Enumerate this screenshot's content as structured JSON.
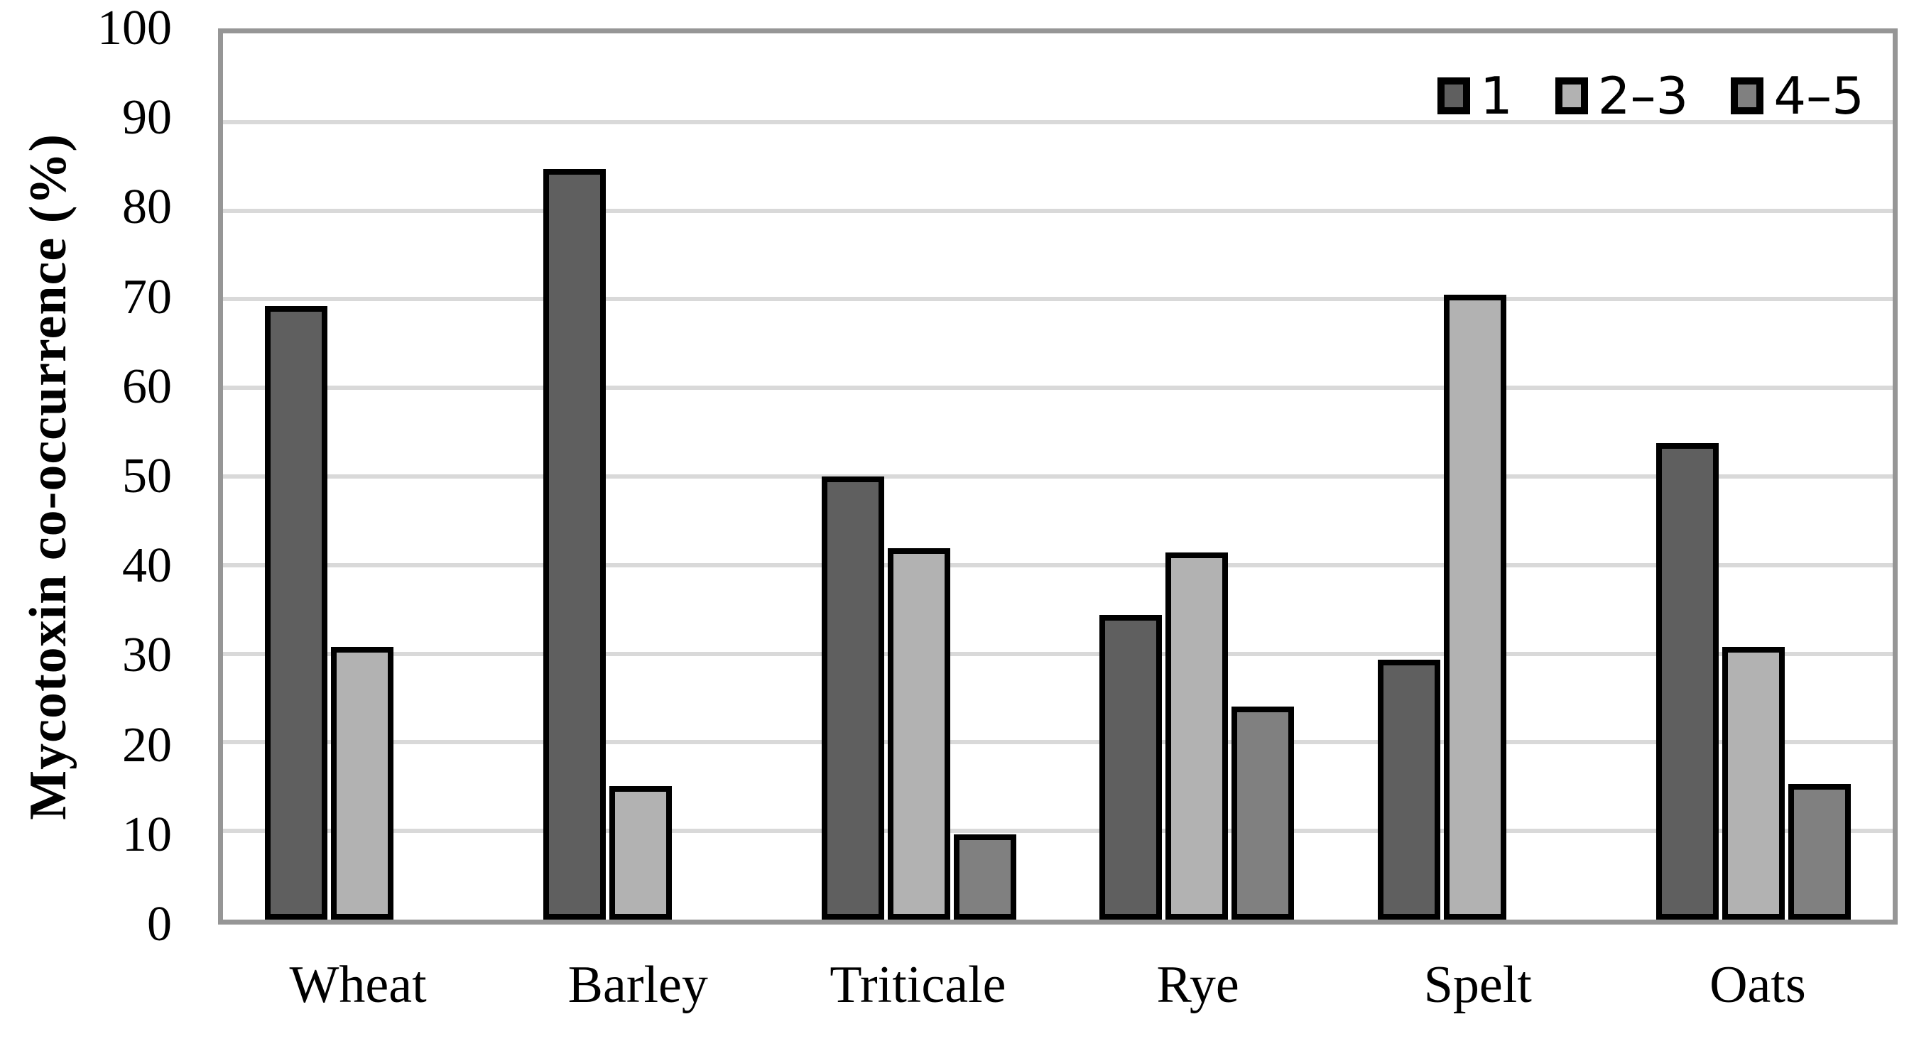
{
  "chart_data": {
    "type": "bar",
    "title": "",
    "xlabel": "",
    "ylabel": "Mycotoxin co-occurrence (%)",
    "ylim": [
      0,
      100
    ],
    "ytick_step": 10,
    "ytick_labels": [
      "0",
      "10",
      "20",
      "30",
      "40",
      "50",
      "60",
      "70",
      "80",
      "90",
      "100"
    ],
    "categories": [
      "Wheat",
      "Barley",
      "Triticale",
      "Rye",
      "Spelt",
      "Oats"
    ],
    "series": [
      {
        "name": "1",
        "color": "#5f5f5f",
        "values": [
          69.2,
          84.7,
          50.0,
          34.4,
          29.3,
          53.8
        ]
      },
      {
        "name": "2–3",
        "color": "#b2b2b2",
        "values": [
          30.8,
          15.1,
          41.9,
          41.4,
          70.5,
          30.8
        ]
      },
      {
        "name": "4–5",
        "color": "#808080",
        "values": [
          null,
          null,
          9.6,
          24.0,
          null,
          15.3
        ]
      }
    ],
    "legend_position": "top-right",
    "grid": true,
    "gridline_color": "#d9d9d9",
    "plot_border_color": "#969696",
    "bar_border_color": "#000000",
    "background_color": "#ffffff"
  }
}
